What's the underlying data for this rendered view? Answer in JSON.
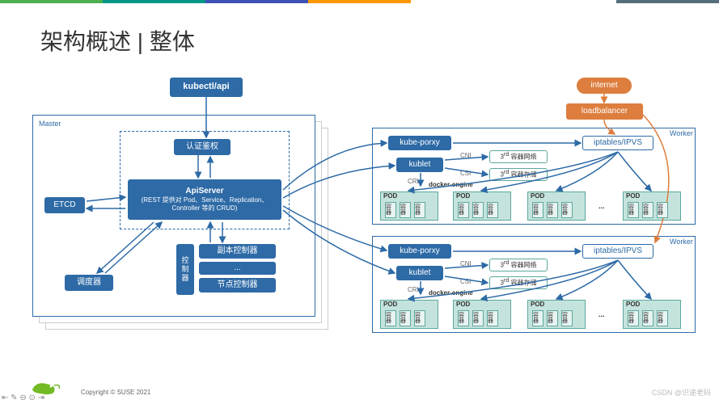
{
  "meta": {
    "title": "架构概述 | 整体",
    "copyright": "Copyright © SUSE 2021",
    "watermark": "CSDN @识途老码"
  },
  "top_colors": [
    "#4caf50",
    "#4caf50",
    "#4caf50",
    "#4caf50",
    "#009688",
    "#009688",
    "#3f51b5",
    "#3f51b5",
    "#ff9800",
    "#ff9800",
    "#ffffff",
    "#ffffff",
    "#ffffff",
    "#546e7a"
  ],
  "colors": {
    "blue": "#2d6aa6",
    "teal": "#5ba89c",
    "teal_fill": "#c5e3dd",
    "orange": "#dd7e3e",
    "border": "#cccccc"
  },
  "nodes": {
    "kubectl": "kubectl/api",
    "auth": "认证鉴权",
    "apiserver_title": "ApiServer",
    "apiserver_desc": "(REST 提供对 Pod、Service、Replication、Controller 等的 CRUD)",
    "etcd": "ETCD",
    "scheduler": "调度器",
    "ctrl_label": "控\n制\n器",
    "replica_ctrl": "副本控制器",
    "ellipsis": "...",
    "node_ctrl": "节点控制器",
    "internet": "internet",
    "loadbalancer": "loadbalancer",
    "kubeproxy": "kube-porxy",
    "kubelet": "kublet",
    "iptables": "iptables/IPVS",
    "cni": "CNI",
    "csi": "CSI",
    "cri": "CRI",
    "container_network": "3rd 容器网络",
    "container_storage": "3rd 容器存储",
    "docker_engine": "docker-engine",
    "pod": "POD",
    "container": "容\n器",
    "dots": "..."
  },
  "labels": {
    "master": "Master",
    "worker": "Worker"
  }
}
